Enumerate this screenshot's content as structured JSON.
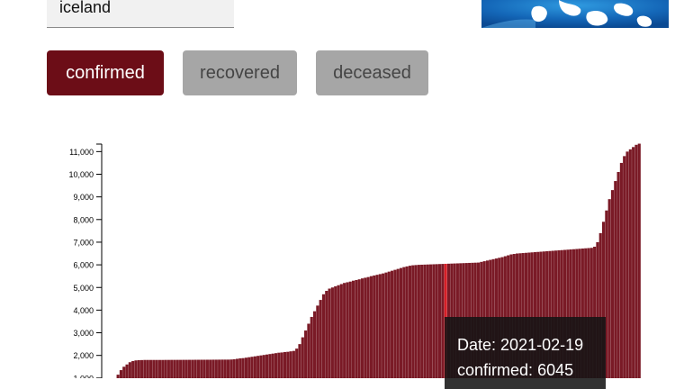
{
  "search": {
    "value": "iceland"
  },
  "globe_image": {
    "icon": "world-map-globe"
  },
  "buttons": {
    "confirmed": "confirmed",
    "recovered": "recovered",
    "deceased": "deceased",
    "active": "confirmed"
  },
  "colors": {
    "accent": "#6c0d17",
    "bar": "#7a1a26",
    "highlight": "#d81e26",
    "inactive_button": "#a6a6a6"
  },
  "tooltip": {
    "date_label": "Date:",
    "date": "2021-02-19",
    "metric_label": "confirmed:",
    "value": "6045"
  },
  "chart_data": {
    "type": "bar",
    "title": "",
    "xlabel": "",
    "ylabel": "",
    "ylim": [
      0,
      11500
    ],
    "yticks": [
      1000,
      2000,
      3000,
      4000,
      5000,
      6000,
      7000,
      8000,
      9000,
      10000,
      11000
    ],
    "ytick_labels": [
      "1,000",
      "2,000",
      "3,000",
      "4,000",
      "5,000",
      "6,000",
      "7,000",
      "8,000",
      "9,000",
      "10,000",
      "11,000"
    ],
    "series": [
      {
        "values": [
          0,
          50,
          300,
          600,
          900,
          1150,
          1350,
          1500,
          1600,
          1700,
          1750,
          1780,
          1790,
          1795,
          1800,
          1800,
          1800,
          1800,
          1800,
          1800,
          1800,
          1802,
          1802,
          1803,
          1803,
          1804,
          1804,
          1805,
          1805,
          1806,
          1806,
          1808,
          1808,
          1809,
          1809,
          1810,
          1810,
          1812,
          1812,
          1813,
          1815,
          1815,
          1815,
          1820,
          1830,
          1850,
          1870,
          1880,
          1900,
          1920,
          1940,
          1960,
          1980,
          2000,
          2020,
          2040,
          2060,
          2080,
          2100,
          2120,
          2130,
          2150,
          2160,
          2180,
          2200,
          2300,
          2500,
          2800,
          3100,
          3400,
          3700,
          3950,
          4200,
          4450,
          4700,
          4850,
          4950,
          5000,
          5050,
          5100,
          5150,
          5200,
          5230,
          5260,
          5300,
          5330,
          5360,
          5400,
          5430,
          5460,
          5500,
          5530,
          5560,
          5590,
          5620,
          5660,
          5700,
          5740,
          5780,
          5820,
          5860,
          5900,
          5930,
          5960,
          5980,
          5990,
          6000,
          6005,
          6010,
          6015,
          6020,
          6025,
          6030,
          6035,
          6040,
          6045,
          6050,
          6055,
          6060,
          6065,
          6070,
          6075,
          6080,
          6085,
          6090,
          6095,
          6100,
          6130,
          6160,
          6190,
          6220,
          6250,
          6280,
          6310,
          6340,
          6380,
          6420,
          6460,
          6480,
          6500,
          6510,
          6520,
          6530,
          6540,
          6550,
          6560,
          6570,
          6580,
          6590,
          6600,
          6610,
          6620,
          6630,
          6640,
          6650,
          6660,
          6670,
          6680,
          6690,
          6700,
          6710,
          6720,
          6730,
          6740,
          6750,
          6800,
          7000,
          7400,
          7900,
          8400,
          8900,
          9300,
          9700,
          10100,
          10500,
          10800,
          11000,
          11100,
          11200,
          11300,
          11350
        ],
        "highlight_index": 115
      }
    ]
  }
}
